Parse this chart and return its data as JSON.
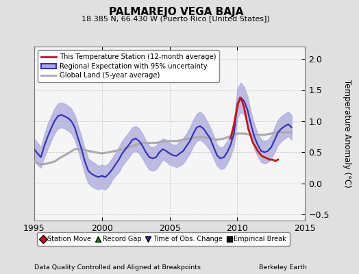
{
  "title": "PALMAREJO VEGA BAJA",
  "subtitle": "18.385 N, 66.430 W (Puerto Rico [United States])",
  "xlabel_left": "Data Quality Controlled and Aligned at Breakpoints",
  "xlabel_right": "Berkeley Earth",
  "ylabel": "Temperature Anomaly (°C)",
  "xlim": [
    1995,
    2015
  ],
  "ylim": [
    -0.6,
    2.2
  ],
  "yticks": [
    -0.5,
    0,
    0.5,
    1.0,
    1.5,
    2.0
  ],
  "xticks": [
    1995,
    2000,
    2005,
    2010,
    2015
  ],
  "background_color": "#e0e0e0",
  "plot_bg_color": "#f5f5f5",
  "regional_color": "#3333bb",
  "regional_fill_color": "#aaaadd",
  "station_color": "#cc1111",
  "global_color": "#aaaaaa",
  "regional_line": {
    "x": [
      1995.0,
      1995.25,
      1995.5,
      1995.75,
      1996.0,
      1996.25,
      1996.5,
      1996.75,
      1997.0,
      1997.25,
      1997.5,
      1997.75,
      1998.0,
      1998.25,
      1998.5,
      1998.75,
      1999.0,
      1999.25,
      1999.5,
      1999.75,
      2000.0,
      2000.25,
      2000.5,
      2000.75,
      2001.0,
      2001.25,
      2001.5,
      2001.75,
      2002.0,
      2002.25,
      2002.5,
      2002.75,
      2003.0,
      2003.25,
      2003.5,
      2003.75,
      2004.0,
      2004.25,
      2004.5,
      2004.75,
      2005.0,
      2005.25,
      2005.5,
      2005.75,
      2006.0,
      2006.25,
      2006.5,
      2006.75,
      2007.0,
      2007.25,
      2007.5,
      2007.75,
      2008.0,
      2008.25,
      2008.5,
      2008.75,
      2009.0,
      2009.25,
      2009.5,
      2009.75,
      2010.0,
      2010.25,
      2010.5,
      2010.75,
      2011.0,
      2011.25,
      2011.5,
      2011.75,
      2012.0,
      2012.25,
      2012.5,
      2012.75,
      2013.0,
      2013.25,
      2013.5,
      2013.75,
      2014.0
    ],
    "y": [
      0.55,
      0.48,
      0.42,
      0.6,
      0.75,
      0.88,
      1.0,
      1.08,
      1.1,
      1.08,
      1.05,
      1.0,
      0.9,
      0.72,
      0.55,
      0.35,
      0.2,
      0.15,
      0.12,
      0.1,
      0.12,
      0.1,
      0.15,
      0.22,
      0.3,
      0.38,
      0.48,
      0.55,
      0.62,
      0.7,
      0.72,
      0.68,
      0.6,
      0.5,
      0.42,
      0.4,
      0.42,
      0.5,
      0.55,
      0.52,
      0.48,
      0.45,
      0.44,
      0.48,
      0.52,
      0.6,
      0.68,
      0.8,
      0.9,
      0.92,
      0.88,
      0.8,
      0.72,
      0.58,
      0.45,
      0.4,
      0.42,
      0.5,
      0.62,
      0.8,
      1.28,
      1.38,
      1.32,
      1.18,
      0.95,
      0.75,
      0.62,
      0.52,
      0.5,
      0.52,
      0.58,
      0.7,
      0.82,
      0.88,
      0.92,
      0.95,
      0.9
    ],
    "upper": [
      0.72,
      0.65,
      0.58,
      0.78,
      0.95,
      1.08,
      1.2,
      1.28,
      1.3,
      1.28,
      1.25,
      1.2,
      1.1,
      0.92,
      0.75,
      0.55,
      0.4,
      0.35,
      0.32,
      0.28,
      0.3,
      0.28,
      0.32,
      0.4,
      0.48,
      0.58,
      0.68,
      0.75,
      0.82,
      0.9,
      0.92,
      0.88,
      0.8,
      0.68,
      0.6,
      0.58,
      0.6,
      0.68,
      0.72,
      0.7,
      0.65,
      0.62,
      0.62,
      0.68,
      0.72,
      0.8,
      0.9,
      1.02,
      1.12,
      1.15,
      1.1,
      1.0,
      0.9,
      0.76,
      0.62,
      0.57,
      0.6,
      0.68,
      0.8,
      1.0,
      1.52,
      1.62,
      1.55,
      1.4,
      1.15,
      0.95,
      0.8,
      0.7,
      0.68,
      0.7,
      0.76,
      0.9,
      1.02,
      1.08,
      1.12,
      1.15,
      1.1
    ],
    "lower": [
      0.38,
      0.3,
      0.25,
      0.42,
      0.55,
      0.68,
      0.8,
      0.88,
      0.9,
      0.88,
      0.85,
      0.8,
      0.7,
      0.52,
      0.35,
      0.15,
      0.0,
      -0.05,
      -0.08,
      -0.1,
      -0.08,
      -0.1,
      -0.05,
      0.05,
      0.12,
      0.18,
      0.28,
      0.35,
      0.42,
      0.5,
      0.52,
      0.48,
      0.4,
      0.3,
      0.22,
      0.2,
      0.22,
      0.3,
      0.38,
      0.35,
      0.3,
      0.28,
      0.26,
      0.28,
      0.32,
      0.4,
      0.48,
      0.6,
      0.68,
      0.7,
      0.66,
      0.6,
      0.52,
      0.4,
      0.28,
      0.23,
      0.24,
      0.32,
      0.44,
      0.6,
      1.05,
      1.15,
      1.1,
      0.96,
      0.75,
      0.55,
      0.44,
      0.34,
      0.32,
      0.34,
      0.4,
      0.5,
      0.62,
      0.68,
      0.72,
      0.76,
      0.7
    ]
  },
  "global_line": {
    "x": [
      1995.0,
      1995.5,
      1996.0,
      1996.5,
      1997.0,
      1997.5,
      1998.0,
      1998.5,
      1999.0,
      1999.5,
      2000.0,
      2000.5,
      2001.0,
      2001.5,
      2002.0,
      2002.5,
      2003.0,
      2003.5,
      2004.0,
      2004.5,
      2005.0,
      2005.5,
      2006.0,
      2006.5,
      2007.0,
      2007.5,
      2008.0,
      2008.5,
      2009.0,
      2009.5,
      2010.0,
      2010.5,
      2011.0,
      2011.5,
      2012.0,
      2012.5,
      2013.0,
      2013.5,
      2014.0
    ],
    "y": [
      0.35,
      0.3,
      0.32,
      0.35,
      0.42,
      0.48,
      0.55,
      0.55,
      0.52,
      0.5,
      0.48,
      0.5,
      0.52,
      0.55,
      0.58,
      0.62,
      0.65,
      0.65,
      0.65,
      0.67,
      0.68,
      0.68,
      0.7,
      0.72,
      0.74,
      0.74,
      0.72,
      0.7,
      0.72,
      0.76,
      0.8,
      0.8,
      0.78,
      0.78,
      0.78,
      0.8,
      0.82,
      0.82,
      0.82
    ]
  },
  "station_line": {
    "x": [
      2009.5,
      2009.7,
      2009.9,
      2010.05,
      2010.2,
      2010.35,
      2010.5,
      2010.65,
      2010.8,
      2011.0,
      2011.15,
      2011.35,
      2011.5,
      2011.65,
      2011.8,
      2012.0,
      2012.2,
      2012.4,
      2012.6,
      2012.8,
      2013.0
    ],
    "y": [
      0.72,
      0.9,
      1.12,
      1.28,
      1.38,
      1.32,
      1.22,
      1.05,
      0.88,
      0.75,
      0.65,
      0.58,
      0.52,
      0.48,
      0.44,
      0.42,
      0.4,
      0.38,
      0.38,
      0.36,
      0.38
    ]
  },
  "legend_entries": [
    {
      "label": "This Temperature Station (12-month average)",
      "color": "#cc1111",
      "lw": 2
    },
    {
      "label": "Regional Expectation with 95% uncertainty",
      "color": "#3333bb",
      "fill": "#aaaadd"
    },
    {
      "label": "Global Land (5-year average)",
      "color": "#aaaaaa",
      "lw": 2
    }
  ],
  "bottom_legend": [
    {
      "label": "Station Move",
      "color": "#cc1111",
      "marker": "D"
    },
    {
      "label": "Record Gap",
      "color": "#228822",
      "marker": "^"
    },
    {
      "label": "Time of Obs. Change",
      "color": "#3333bb",
      "marker": "v"
    },
    {
      "label": "Empirical Break",
      "color": "#111111",
      "marker": "s"
    }
  ]
}
